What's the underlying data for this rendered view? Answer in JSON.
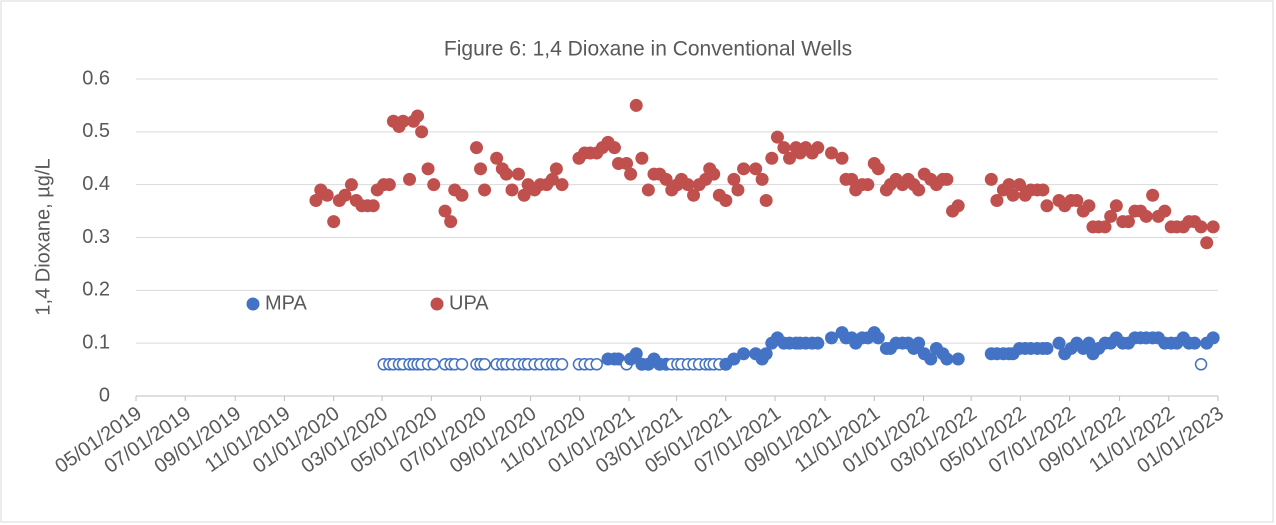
{
  "chart_data": {
    "type": "scatter",
    "title": "Figure 6: 1,4 Dioxane in Conventional Wells",
    "y_label": "1,4 Dioxane, µg/L",
    "xlim": [
      "05/01/2019",
      "01/01/2023"
    ],
    "xticks": [
      "05/01/2019",
      "07/01/2019",
      "09/01/2019",
      "11/01/2019",
      "01/01/2020",
      "03/01/2020",
      "05/01/2020",
      "07/01/2020",
      "09/01/2020",
      "11/01/2020",
      "01/01/2021",
      "03/01/2021",
      "05/01/2021",
      "07/01/2021",
      "09/01/2021",
      "11/01/2021",
      "01/01/2022",
      "03/01/2022",
      "05/01/2022",
      "07/01/2022",
      "09/01/2022",
      "11/01/2022",
      "01/01/2023"
    ],
    "ylim": [
      0,
      0.6
    ],
    "yticks": [
      0,
      0.1,
      0.2,
      0.3,
      0.4,
      0.5,
      0.6
    ],
    "grid": true,
    "legend": "middle-left",
    "series": [
      {
        "name": "MPA",
        "color": "#4472c4",
        "x": [
          "03/03/2020",
          "03/10/2020",
          "03/15/2020",
          "03/22/2020",
          "03/27/2020",
          "04/04/2020",
          "04/09/2020",
          "04/14/2020",
          "04/19/2020",
          "04/27/2020",
          "05/04/2020",
          "05/18/2020",
          "05/25/2020",
          "05/30/2020",
          "06/08/2020",
          "06/26/2020",
          "07/01/2020",
          "07/06/2020",
          "07/21/2020",
          "07/28/2020",
          "08/02/2020",
          "08/09/2020",
          "08/17/2020",
          "08/24/2020",
          "08/29/2020",
          "09/06/2020",
          "09/13/2020",
          "09/21/2020",
          "09/28/2020",
          "10/03/2020",
          "10/10/2020",
          "10/31/2020",
          "11/07/2020",
          "11/14/2020",
          "11/22/2020",
          "12/06/2020",
          "12/14/2020",
          "12/19/2020",
          "12/29/2020",
          "01/03/2021",
          "01/10/2021",
          "01/17/2021",
          "01/25/2021",
          "02/01/2021",
          "02/08/2021",
          "02/16/2021",
          "02/23/2021",
          "03/02/2021",
          "03/07/2021",
          "03/15/2021",
          "03/22/2021",
          "03/29/2021",
          "04/06/2021",
          "04/11/2021",
          "04/16/2021",
          "04/23/2021",
          "05/01/2021",
          "05/11/2021",
          "05/23/2021",
          "06/07/2021",
          "06/15/2021",
          "06/20/2021",
          "06/27/2021",
          "07/04/2021",
          "07/12/2021",
          "07/19/2021",
          "07/27/2021",
          "08/01/2021",
          "08/08/2021",
          "08/16/2021",
          "08/23/2021",
          "09/09/2021",
          "09/22/2021",
          "09/27/2021",
          "10/04/2021",
          "10/09/2021",
          "10/17/2021",
          "10/24/2021",
          "11/01/2021",
          "11/06/2021",
          "11/16/2021",
          "11/21/2021",
          "11/28/2021",
          "12/06/2021",
          "12/13/2021",
          "12/20/2021",
          "12/26/2021",
          "01/02/2022",
          "01/10/2022",
          "01/17/2022",
          "01/25/2022",
          "01/30/2022",
          "02/13/2022",
          "03/26/2022",
          "04/02/2022",
          "04/10/2022",
          "04/17/2022",
          "04/22/2022",
          "04/30/2022",
          "05/07/2022",
          "05/14/2022",
          "05/22/2022",
          "05/29/2022",
          "06/03/2022",
          "06/18/2022",
          "06/25/2022",
          "07/03/2022",
          "07/10/2022",
          "07/18/2022",
          "07/25/2022",
          "07/30/2022",
          "08/06/2022",
          "08/14/2022",
          "08/21/2022",
          "08/28/2022",
          "09/05/2022",
          "09/12/2022",
          "09/20/2022",
          "09/27/2022",
          "10/04/2022",
          "10/12/2022",
          "10/19/2022",
          "10/27/2022",
          "11/04/2022",
          "11/11/2022",
          "11/19/2022",
          "11/26/2022",
          "12/03/2022",
          "12/11/2022",
          "12/18/2022",
          "12/26/2022"
        ],
        "values": [
          0.06,
          0.06,
          0.06,
          0.06,
          0.06,
          0.06,
          0.06,
          0.06,
          0.06,
          0.06,
          0.06,
          0.06,
          0.06,
          0.06,
          0.06,
          0.06,
          0.06,
          0.06,
          0.06,
          0.06,
          0.06,
          0.06,
          0.06,
          0.06,
          0.06,
          0.06,
          0.06,
          0.06,
          0.06,
          0.06,
          0.06,
          0.06,
          0.06,
          0.06,
          0.06,
          0.07,
          0.07,
          0.07,
          0.06,
          0.07,
          0.08,
          0.06,
          0.06,
          0.07,
          0.06,
          0.06,
          0.06,
          0.06,
          0.06,
          0.06,
          0.06,
          0.06,
          0.06,
          0.06,
          0.06,
          0.06,
          0.06,
          0.07,
          0.08,
          0.08,
          0.07,
          0.08,
          0.1,
          0.11,
          0.1,
          0.1,
          0.1,
          0.1,
          0.1,
          0.1,
          0.1,
          0.11,
          0.12,
          0.11,
          0.11,
          0.1,
          0.11,
          0.11,
          0.12,
          0.11,
          0.09,
          0.09,
          0.1,
          0.1,
          0.1,
          0.09,
          0.1,
          0.08,
          0.07,
          0.09,
          0.08,
          0.07,
          0.07,
          0.08,
          0.08,
          0.08,
          0.08,
          0.08,
          0.09,
          0.09,
          0.09,
          0.09,
          0.09,
          0.09,
          0.1,
          0.08,
          0.09,
          0.1,
          0.09,
          0.1,
          0.08,
          0.09,
          0.1,
          0.1,
          0.11,
          0.1,
          0.1,
          0.11,
          0.11,
          0.11,
          0.11,
          0.11,
          0.1,
          0.1,
          0.1,
          0.11,
          0.1,
          0.1,
          0.06,
          0.1,
          0.11
        ],
        "filled": [
          false,
          false,
          false,
          false,
          false,
          false,
          false,
          false,
          false,
          false,
          false,
          false,
          false,
          false,
          false,
          false,
          false,
          false,
          false,
          false,
          false,
          false,
          false,
          false,
          false,
          false,
          false,
          false,
          false,
          false,
          false,
          false,
          false,
          false,
          false,
          true,
          true,
          true,
          false,
          true,
          true,
          true,
          true,
          true,
          true,
          true,
          false,
          false,
          false,
          false,
          false,
          false,
          false,
          false,
          false,
          false,
          true,
          true,
          true,
          true,
          true,
          true,
          true,
          true,
          true,
          true,
          true,
          true,
          true,
          true,
          true,
          true,
          true,
          true,
          true,
          true,
          true,
          true,
          true,
          true,
          true,
          true,
          true,
          true,
          true,
          true,
          true,
          true,
          true,
          true,
          true,
          true,
          true,
          true,
          true,
          true,
          true,
          true,
          true,
          true,
          true,
          true,
          true,
          true,
          true,
          true,
          true,
          true,
          true,
          true,
          true,
          true,
          true,
          true,
          true,
          true,
          true,
          true,
          true,
          true,
          true,
          true,
          true,
          true,
          true,
          true,
          true,
          true,
          false,
          true,
          true
        ]
      },
      {
        "name": "UPA",
        "color": "#c0504d",
        "x": [
          "12/10/2019",
          "12/16/2019",
          "12/24/2019",
          "01/01/2020",
          "01/08/2020",
          "01/15/2020",
          "01/23/2020",
          "01/29/2020",
          "02/05/2020",
          "02/12/2020",
          "02/19/2020",
          "02/24/2020",
          "03/03/2020",
          "03/10/2020",
          "03/15/2020",
          "03/22/2020",
          "03/27/2020",
          "04/04/2020",
          "04/09/2020",
          "04/14/2020",
          "04/19/2020",
          "04/27/2020",
          "05/04/2020",
          "05/18/2020",
          "05/25/2020",
          "05/30/2020",
          "06/08/2020",
          "06/26/2020",
          "07/01/2020",
          "07/06/2020",
          "07/21/2020",
          "07/28/2020",
          "08/02/2020",
          "08/09/2020",
          "08/17/2020",
          "08/24/2020",
          "08/29/2020",
          "09/06/2020",
          "09/13/2020",
          "09/21/2020",
          "09/28/2020",
          "10/03/2020",
          "10/10/2020",
          "10/31/2020",
          "11/07/2020",
          "11/14/2020",
          "11/22/2020",
          "11/29/2020",
          "12/06/2020",
          "12/14/2020",
          "12/19/2020",
          "12/29/2020",
          "01/03/2021",
          "01/10/2021",
          "01/17/2021",
          "01/25/2021",
          "02/01/2021",
          "02/08/2021",
          "02/16/2021",
          "02/23/2021",
          "03/02/2021",
          "03/07/2021",
          "03/15/2021",
          "03/22/2021",
          "03/29/2021",
          "04/06/2021",
          "04/11/2021",
          "04/16/2021",
          "04/23/2021",
          "05/01/2021",
          "05/11/2021",
          "05/16/2021",
          "05/23/2021",
          "06/07/2021",
          "06/15/2021",
          "06/20/2021",
          "06/27/2021",
          "07/04/2021",
          "07/12/2021",
          "07/19/2021",
          "07/27/2021",
          "08/01/2021",
          "08/08/2021",
          "08/16/2021",
          "08/23/2021",
          "09/09/2021",
          "09/22/2021",
          "09/27/2021",
          "10/04/2021",
          "10/09/2021",
          "10/17/2021",
          "10/24/2021",
          "11/01/2021",
          "11/06/2021",
          "11/16/2021",
          "11/21/2021",
          "11/28/2021",
          "12/06/2021",
          "12/13/2021",
          "12/20/2021",
          "12/26/2021",
          "01/02/2022",
          "01/10/2022",
          "01/17/2022",
          "01/25/2022",
          "01/30/2022",
          "02/06/2022",
          "02/13/2022",
          "03/26/2022",
          "04/02/2022",
          "04/10/2022",
          "04/17/2022",
          "04/22/2022",
          "04/30/2022",
          "05/07/2022",
          "05/14/2022",
          "05/22/2022",
          "05/29/2022",
          "06/03/2022",
          "06/18/2022",
          "06/25/2022",
          "07/03/2022",
          "07/10/2022",
          "07/18/2022",
          "07/25/2022",
          "07/30/2022",
          "08/06/2022",
          "08/14/2022",
          "08/21/2022",
          "08/28/2022",
          "09/05/2022",
          "09/12/2022",
          "09/20/2022",
          "09/27/2022",
          "10/04/2022",
          "10/12/2022",
          "10/19/2022",
          "10/27/2022",
          "11/04/2022",
          "11/11/2022",
          "11/19/2022",
          "11/26/2022",
          "12/03/2022",
          "12/11/2022",
          "12/18/2022",
          "12/26/2022"
        ],
        "values": [
          0.37,
          0.39,
          0.38,
          0.33,
          0.37,
          0.38,
          0.4,
          0.37,
          0.36,
          0.36,
          0.36,
          0.39,
          0.4,
          0.4,
          0.52,
          0.51,
          0.52,
          0.41,
          0.52,
          0.53,
          0.5,
          0.43,
          0.4,
          0.35,
          0.33,
          0.39,
          0.38,
          0.47,
          0.43,
          0.39,
          0.45,
          0.43,
          0.42,
          0.39,
          0.42,
          0.38,
          0.4,
          0.39,
          0.4,
          0.4,
          0.41,
          0.43,
          0.4,
          0.45,
          0.46,
          0.46,
          0.46,
          0.47,
          0.48,
          0.47,
          0.44,
          0.44,
          0.42,
          0.55,
          0.45,
          0.39,
          0.42,
          0.42,
          0.41,
          0.39,
          0.4,
          0.41,
          0.4,
          0.38,
          0.4,
          0.41,
          0.43,
          0.42,
          0.38,
          0.37,
          0.41,
          0.39,
          0.43,
          0.43,
          0.41,
          0.37,
          0.45,
          0.49,
          0.47,
          0.45,
          0.47,
          0.46,
          0.47,
          0.46,
          0.47,
          0.46,
          0.45,
          0.41,
          0.41,
          0.39,
          0.4,
          0.4,
          0.44,
          0.43,
          0.39,
          0.4,
          0.41,
          0.4,
          0.41,
          0.4,
          0.39,
          0.42,
          0.41,
          0.4,
          0.41,
          0.41,
          0.35,
          0.36,
          0.41,
          0.37,
          0.39,
          0.4,
          0.38,
          0.4,
          0.38,
          0.39,
          0.39,
          0.39,
          0.36,
          0.37,
          0.36,
          0.37,
          0.37,
          0.35,
          0.36,
          0.32,
          0.32,
          0.32,
          0.34,
          0.36,
          0.33,
          0.33,
          0.35,
          0.35,
          0.34,
          0.38,
          0.34,
          0.35,
          0.32,
          0.32,
          0.32,
          0.33,
          0.33,
          0.32,
          0.29,
          0.32
        ]
      }
    ]
  }
}
